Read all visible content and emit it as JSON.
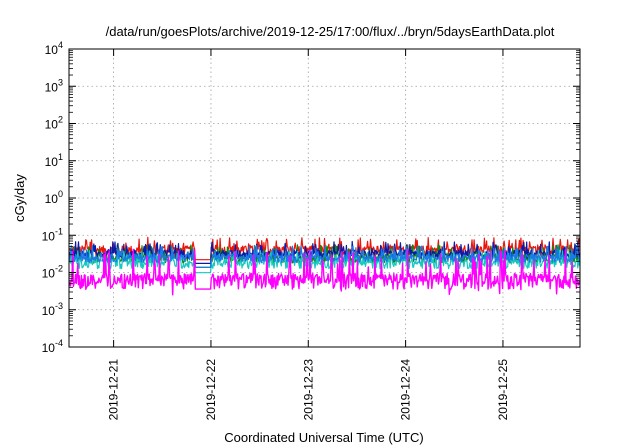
{
  "chart_data": {
    "type": "line",
    "title": "/data/run/goesPlots/archive/2019-12-25/17:00/flux/../bryn/5daysEarthData.plot",
    "xlabel": "Coordinated Universal Time (UTC)",
    "ylabel": "cGy/day",
    "yscale": "log",
    "ylim": [
      0.0001,
      10000
    ],
    "y_ticks": [
      {
        "base": "10",
        "exp": "4"
      },
      {
        "base": "10",
        "exp": "3"
      },
      {
        "base": "10",
        "exp": "2"
      },
      {
        "base": "10",
        "exp": "1"
      },
      {
        "base": "10",
        "exp": "0"
      },
      {
        "base": "10",
        "exp": "-1"
      },
      {
        "base": "10",
        "exp": "-2"
      },
      {
        "base": "10",
        "exp": "-3"
      },
      {
        "base": "10",
        "exp": "-4"
      }
    ],
    "xlim": [
      "2019-12-20T13:00",
      "2019-12-25T19:00"
    ],
    "x_ticks": [
      "2019-12-21",
      "2019-12-22",
      "2019-12-23",
      "2019-12-24",
      "2019-12-25"
    ],
    "grid": true,
    "gap": [
      "2019-12-21T20:00",
      "2019-12-22T00:00"
    ],
    "series": [
      {
        "color": "#e8160c",
        "base": 0.04,
        "spread": 0.3
      },
      {
        "color": "#0a8a0a",
        "base": 0.025,
        "spread": 0.3
      },
      {
        "color": "#0a1aa8",
        "base": 0.032,
        "spread": 0.25
      },
      {
        "color": "#18c8c0",
        "base": 0.018,
        "spread": 0.3
      },
      {
        "color": "#1a7ae8",
        "base": 0.025,
        "spread": 0.25
      },
      {
        "color": "#ff00ff",
        "base": 0.0065,
        "spread": 0.45
      }
    ]
  }
}
